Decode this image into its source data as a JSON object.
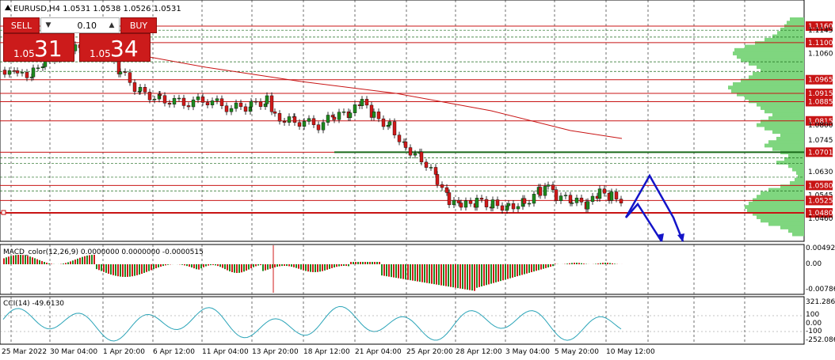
{
  "title": "EURUSD,H4  1.0531 1.0538 1.0526 1.0531",
  "title_icon": "triangle-up-icon",
  "trade": {
    "sell_label": "SELL",
    "buy_label": "BUY",
    "lot": "0.10",
    "sell_small": "1.05",
    "sell_big": "31",
    "buy_small": "1.05",
    "buy_big": "34",
    "colors": {
      "panel": "#cc1b1b"
    }
  },
  "price_axis": [
    "1.1160",
    "1.1145",
    "1.1100",
    "1.1060",
    "1.0965",
    "1.0915",
    "1.0885",
    "1.0815",
    "1.0800",
    "1.0745",
    "1.0701",
    "1.0630",
    "1.0580",
    "1.0545",
    "1.0525",
    "1.0480",
    "1.0460"
  ],
  "level_labels": [
    "1.1160",
    "1.1100",
    "1.0965",
    "1.0915",
    "1.0885",
    "1.0815",
    "1.0701",
    "1.0580",
    "1.0525",
    "1.0480"
  ],
  "macd": {
    "label": "MACD_color(12,26,9) 0.0000000 0.0000000 -0.0000515",
    "axis": [
      "0.004923",
      "0.00",
      "-0.007865"
    ]
  },
  "cci": {
    "label": "CCI(14) -49.6130",
    "axis": [
      "321.2862",
      "100",
      "0.00",
      "-100",
      "-252.0865"
    ]
  },
  "time_axis": [
    "25 Mar 2022",
    "30 Mar 04:00",
    "1 Apr 20:00",
    "6 Apr 12:00",
    "11 Apr 04:00",
    "13 Apr 20:00",
    "18 Apr 12:00",
    "21 Apr 04:00",
    "25 Apr 20:00",
    "28 Apr 12:00",
    "3 May 04:00",
    "5 May 20:00",
    "10 May 12:00"
  ],
  "colors": {
    "bull": "#1e8a1e",
    "bear": "#d01a1a",
    "level": "#c81414",
    "grid": "#333333",
    "histo": "#7fd67f",
    "pattern": "#1414c8",
    "ma": "#c81414",
    "cci": "#2aa4b8"
  }
}
